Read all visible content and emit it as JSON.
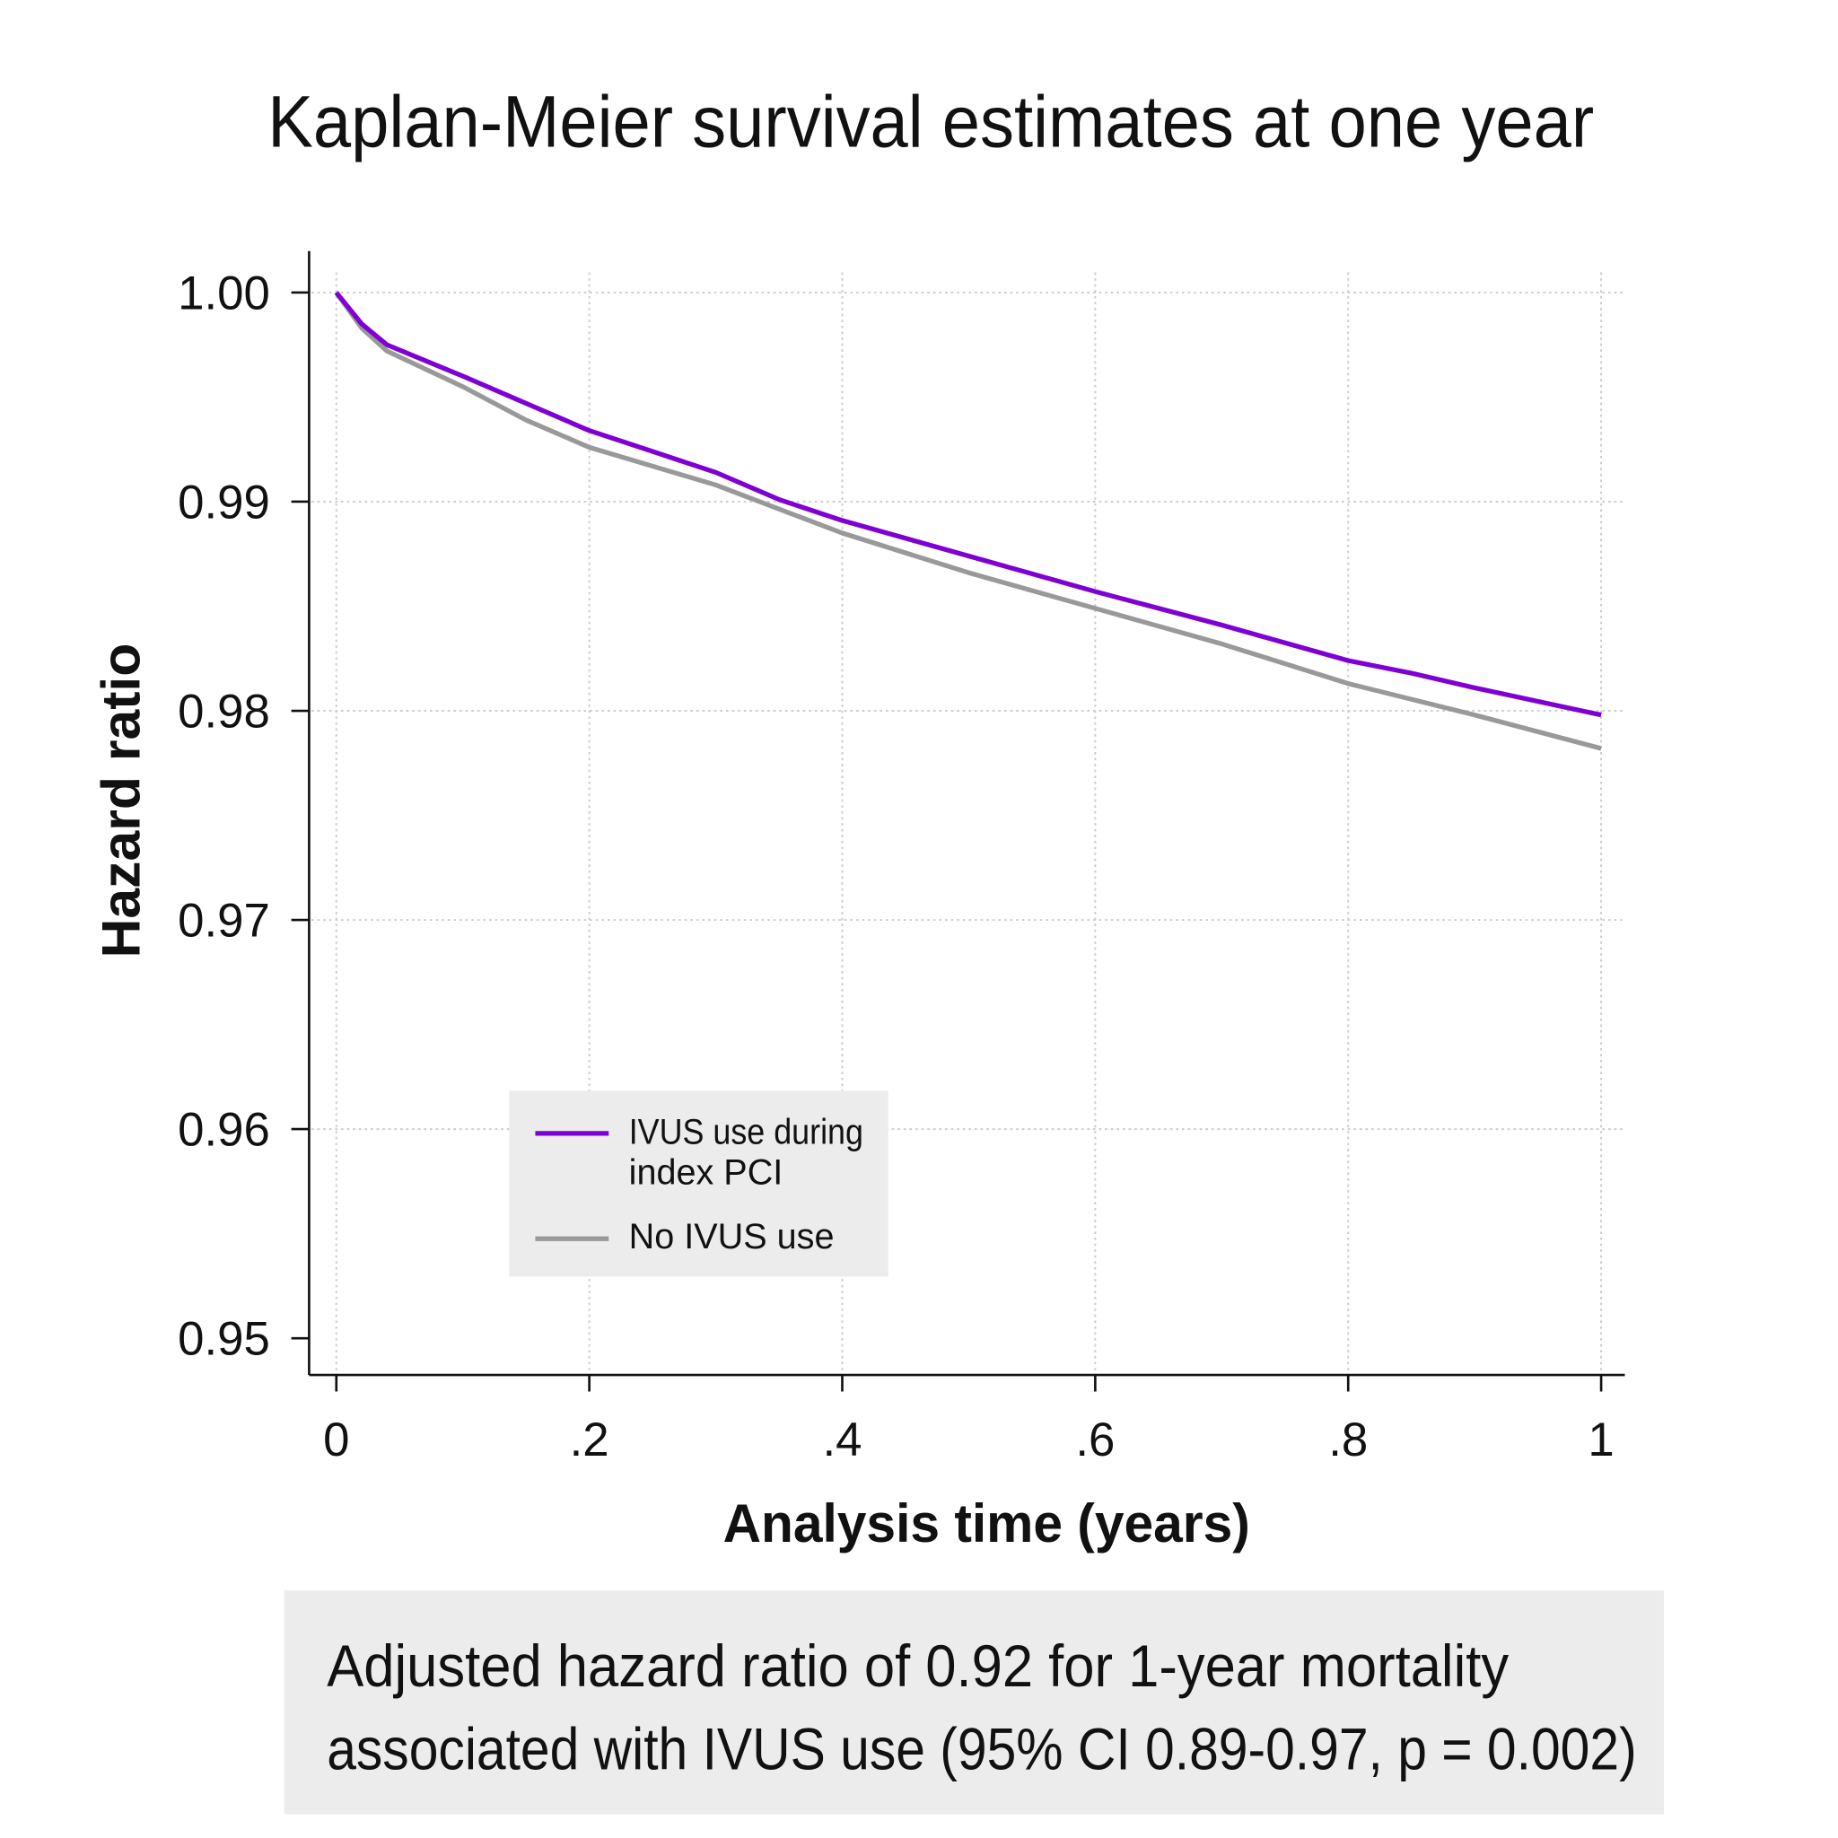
{
  "chart_data": {
    "type": "line",
    "title": "Kaplan-Meier survival estimates at one year",
    "xlabel": "Analysis time (years)",
    "ylabel": "Hazard ratio",
    "xlim": [
      0,
      1
    ],
    "ylim": [
      0.95,
      1.0
    ],
    "xticks": [
      0,
      0.2,
      0.4,
      0.6,
      0.8,
      1
    ],
    "xtick_labels": [
      "0",
      ".2",
      ".4",
      ".6",
      ".8",
      "1"
    ],
    "yticks": [
      1.0,
      0.99,
      0.98,
      0.97,
      0.96,
      0.95
    ],
    "ytick_labels": [
      "1.00",
      "0.99",
      "0.98",
      "0.97",
      "0.96",
      "0.95"
    ],
    "grid": true,
    "legend_position": "bottom-left",
    "legend_label_lines": [
      [
        "IVUS use during",
        "index PCI"
      ],
      [
        "No IVUS use"
      ]
    ],
    "series": [
      {
        "name": "IVUS use during index PCI",
        "color": "#7f00d4",
        "x": [
          0,
          0.02,
          0.04,
          0.1,
          0.15,
          0.2,
          0.25,
          0.3,
          0.35,
          0.4,
          0.5,
          0.6,
          0.7,
          0.8,
          0.85,
          0.9,
          1.0
        ],
        "y": [
          1.0,
          0.9985,
          0.9975,
          0.996,
          0.9947,
          0.9934,
          0.9924,
          0.9914,
          0.9901,
          0.9891,
          0.9874,
          0.9857,
          0.9841,
          0.9824,
          0.9818,
          0.9811,
          0.9798
        ]
      },
      {
        "name": "No IVUS use",
        "color": "#999999",
        "x": [
          0,
          0.02,
          0.04,
          0.1,
          0.15,
          0.2,
          0.3,
          0.4,
          0.5,
          0.6,
          0.7,
          0.8,
          0.9,
          1.0
        ],
        "y": [
          1.0,
          0.9983,
          0.9972,
          0.9955,
          0.9939,
          0.9926,
          0.9908,
          0.9885,
          0.9866,
          0.9849,
          0.9832,
          0.9813,
          0.9798,
          0.9782
        ]
      }
    ],
    "annotation": {
      "lines": [
        "Adjusted hazard ratio of 0.92 for 1-year mortality",
        "associated with IVUS use (95% CI 0.89-0.97, p = 0.002)"
      ],
      "background": "#ececec"
    }
  }
}
